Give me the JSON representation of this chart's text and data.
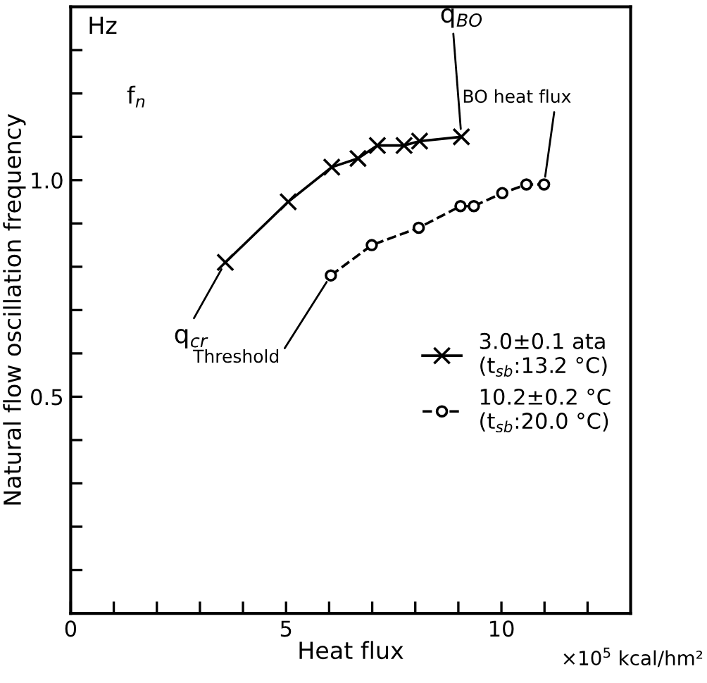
{
  "chart_data": {
    "type": "line",
    "xlabel": "Heat flux",
    "ylabel": "Natural flow oscillation frequency",
    "xlim": [
      0,
      13
    ],
    "ylim": [
      0,
      1.4
    ],
    "xticks": [
      0,
      {
        "value": 1,
        "label": null
      },
      {
        "value": 2,
        "label": null
      },
      {
        "value": 3,
        "label": null
      },
      {
        "value": 4,
        "label": null
      },
      5,
      {
        "value": 6,
        "label": null
      },
      {
        "value": 7,
        "label": null
      },
      {
        "value": 8,
        "label": null
      },
      {
        "value": 9,
        "label": null
      },
      10,
      {
        "value": 11,
        "label": null
      },
      {
        "value": 12,
        "label": null
      }
    ],
    "yticks": [
      {
        "value": 0.1,
        "label": null
      },
      {
        "value": 0.2,
        "label": null
      },
      {
        "value": 0.3,
        "label": null
      },
      {
        "value": 0.4,
        "label": null
      },
      0.5,
      {
        "value": 0.6,
        "label": null
      },
      {
        "value": 0.7,
        "label": null
      },
      {
        "value": 0.8,
        "label": null
      },
      {
        "value": 0.9,
        "label": null
      },
      {
        "value": 1.0,
        "label": "1.0"
      },
      {
        "value": 1.1,
        "label": null
      },
      {
        "value": 1.2,
        "label": null
      },
      {
        "value": 1.3,
        "label": null
      }
    ],
    "series": [
      {
        "name": "3.0±0.1 ata\n(t$_{sb}$:13.2 °C)",
        "color": "#000000",
        "marker": "cross",
        "line_style": "solid",
        "x": [
          3.59,
          5.05,
          6.06,
          6.67,
          7.12,
          7.74,
          8.1,
          9.07
        ],
        "values": [
          0.81,
          0.95,
          1.03,
          1.05,
          1.08,
          1.08,
          1.09,
          1.1
        ]
      },
      {
        "name": "10.2±0.2 °C\n(t$_{sb}$:20.0 °C)",
        "color": "#000000",
        "marker": "circle",
        "line_style": "dashed",
        "x": [
          6.04,
          6.99,
          8.08,
          9.05,
          9.36,
          10.02,
          10.58,
          10.99
        ],
        "values": [
          0.78,
          0.85,
          0.89,
          0.94,
          0.94,
          0.97,
          0.99,
          0.99
        ]
      }
    ],
    "annotations": [
      "Hz",
      "f$_{n}$",
      "×10$^{5}$ kcal/hm²",
      {
        "text": "q$_{cr}$",
        "x": 3.59,
        "y": 0.81
      },
      {
        "text": "Threshold",
        "x": 6.04,
        "y": 0.78
      },
      {
        "text": "q$_{BO}$",
        "x": 9.07,
        "y": 1.1
      },
      {
        "text": "BO heat flux",
        "x": 10.99,
        "y": 0.99
      }
    ],
    "legend": "right",
    "grid": false
  }
}
